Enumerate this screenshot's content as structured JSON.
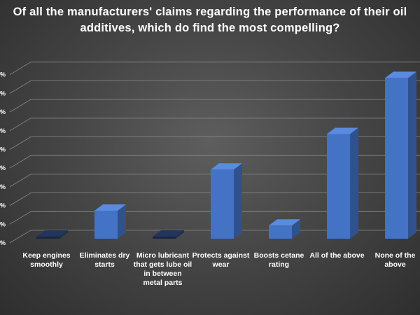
{
  "chart_data": {
    "type": "bar",
    "title": "Of all the manufacturers' claims regarding the performance of their oil additives, which do find the most compelling?",
    "categories": [
      "Keep engines smoothly",
      "Eliminates dry starts",
      "Micro lubricant that gets lube oil in between metal parts",
      "Protects against wear",
      "Boosts cetane rating",
      "All of the above",
      "None of the above"
    ],
    "values": [
      0,
      1.5,
      0,
      3.7,
      0.7,
      5.6,
      8.6
    ],
    "ylim": [
      0,
      9.6
    ],
    "ytick_labels": [
      "%",
      "%",
      "%",
      "%",
      "%",
      "%",
      "%",
      "%",
      "%",
      "%"
    ],
    "xlabel": "",
    "ylabel": "",
    "grid": true,
    "style": "3d-column",
    "colors": {
      "bar_front": "#4472c4",
      "bar_side": "#2f528f",
      "bar_top": "#5b8be0"
    }
  }
}
